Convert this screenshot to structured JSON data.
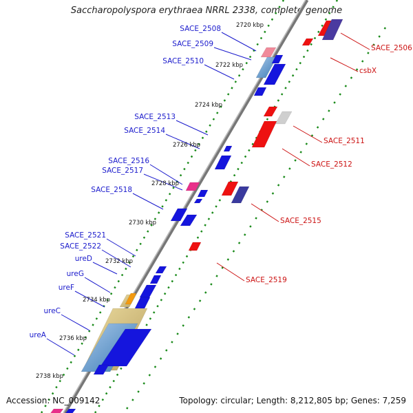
{
  "title": "Saccharopolyspora erythraea NRRL 2338, complete genome",
  "accession": "Accession: NC_009142",
  "topology": "Topology: circular; Length: 8,212,805 bp; Genes: 7,259",
  "colors": {
    "forward_label": "#1a1acc",
    "reverse_label": "#cc1111",
    "backbone": "#777777",
    "scale_dots": "#1a8a1a"
  },
  "kbp_ticks": [
    "2720 kbp",
    "2722 kbp",
    "2724 kbp",
    "2726 kbp",
    "2728 kbp",
    "2730 kbp",
    "2732 kbp",
    "2734 kbp",
    "2736 kbp",
    "2738 kbp"
  ],
  "forward_labels": [
    "SACE_2508",
    "SACE_2509",
    "SACE_2510",
    "SACE_2513",
    "SACE_2514",
    "SACE_2516",
    "SACE_2517",
    "SACE_2518",
    "SACE_2521",
    "SACE_2522",
    "ureD",
    "ureG",
    "ureF",
    "ureC",
    "ureA"
  ],
  "reverse_labels": [
    "SACE_2506",
    "csbX",
    "SACE_2511",
    "SACE_2512",
    "SACE_2515",
    "SACE_2519"
  ]
}
